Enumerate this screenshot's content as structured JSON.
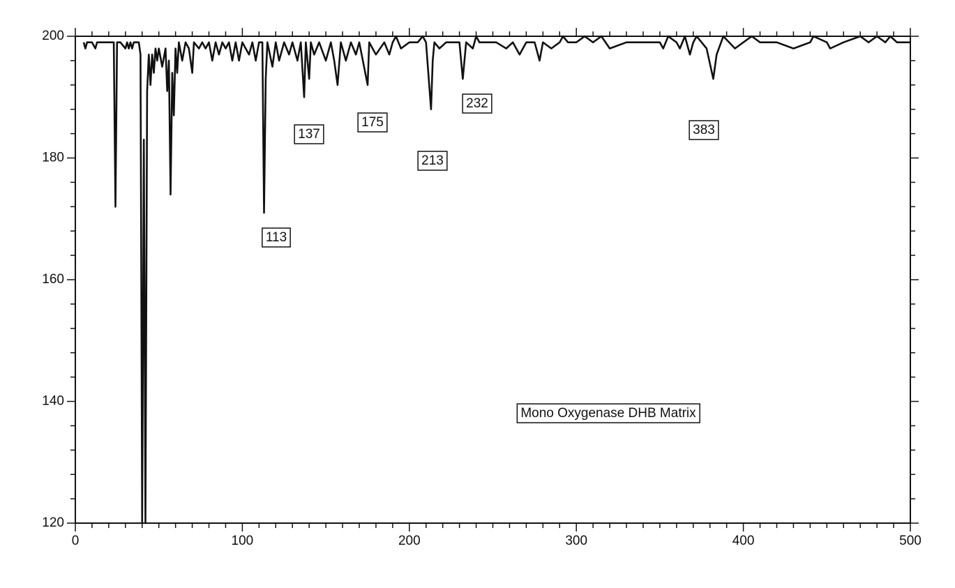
{
  "chart_data": {
    "type": "line",
    "annotations": [
      "113",
      "137",
      "175",
      "213",
      "232",
      "383",
      "Mono Oxygenase DHB Matrix"
    ],
    "x": [
      5,
      6,
      7,
      10,
      12,
      13,
      20,
      23,
      24,
      25,
      27,
      30,
      31,
      32,
      33,
      34,
      35,
      36,
      38,
      39,
      40,
      41,
      42,
      43,
      44,
      45,
      46,
      47,
      48,
      49,
      50,
      52,
      54,
      55,
      56,
      57,
      58,
      59,
      60,
      61,
      62,
      64,
      66,
      68,
      70,
      71,
      74,
      76,
      78,
      80,
      82,
      84,
      86,
      88,
      90,
      92,
      94,
      96,
      98,
      100,
      104,
      106,
      108,
      110,
      112,
      113,
      114,
      115,
      118,
      120,
      122,
      125,
      128,
      130,
      133,
      135,
      137,
      138,
      140,
      141,
      143,
      146,
      150,
      153,
      155,
      157,
      159,
      162,
      165,
      168,
      170,
      175,
      176,
      180,
      185,
      188,
      190,
      192,
      195,
      200,
      205,
      208,
      210,
      213,
      214,
      215,
      218,
      222,
      225,
      230,
      232,
      234,
      238,
      240,
      242,
      248,
      252,
      258,
      262,
      266,
      270,
      275,
      278,
      280,
      285,
      290,
      292,
      295,
      300,
      305,
      310,
      315,
      320,
      330,
      340,
      350,
      352,
      355,
      360,
      362,
      365,
      368,
      370,
      372,
      375,
      378,
      382,
      384,
      388,
      395,
      400,
      405,
      410,
      420,
      430,
      440,
      442,
      450,
      452,
      460,
      470,
      475,
      480,
      485,
      488,
      492,
      500
    ],
    "series": [
      {
        "color": "#111111",
        "values": [
          199,
          198,
          199,
          199,
          198,
          199,
          199,
          199,
          172,
          199,
          199,
          198,
          199,
          198,
          199,
          198,
          199,
          199,
          199,
          197,
          120,
          183,
          120,
          191,
          197,
          192,
          197,
          194,
          198,
          196,
          198,
          195,
          198,
          191,
          196,
          174,
          194,
          187,
          198,
          194,
          199,
          196,
          199,
          198,
          194,
          199,
          198,
          199,
          198,
          199,
          196,
          199,
          197,
          199,
          198,
          199,
          196,
          199,
          196,
          199,
          197,
          199,
          196,
          199,
          199,
          171,
          193,
          199,
          195,
          199,
          196,
          199,
          197,
          199,
          196,
          199,
          190,
          199,
          193,
          199,
          197,
          199,
          196,
          199,
          196,
          192,
          199,
          196,
          199,
          197,
          199,
          192,
          199,
          197,
          199,
          197,
          199,
          200,
          198,
          199,
          199,
          200,
          199,
          188,
          196,
          199,
          198,
          199,
          199,
          199,
          193,
          199,
          198,
          200,
          199,
          199,
          199,
          198,
          199,
          197,
          199,
          199,
          196,
          199,
          198,
          199,
          200,
          199,
          199,
          200,
          199,
          200,
          198,
          199,
          199,
          199,
          198,
          200,
          199,
          198,
          200,
          197,
          199,
          200,
          199,
          198,
          193,
          197,
          200,
          198,
          199,
          200,
          199,
          199,
          198,
          199,
          200,
          199,
          198,
          199,
          200,
          199,
          200,
          199,
          200,
          199,
          199
        ]
      }
    ],
    "xlim": [
      0,
      500
    ],
    "ylim": [
      120,
      200
    ],
    "xticks": [
      0,
      100,
      200,
      300,
      400,
      500
    ],
    "yticks": [
      120,
      140,
      160,
      180,
      200
    ],
    "xminorticks": [
      10,
      20,
      30,
      40,
      50,
      60,
      70,
      80,
      90,
      110,
      120,
      130,
      140,
      150,
      160,
      170,
      180,
      190,
      210,
      220,
      230,
      240,
      250,
      260,
      270,
      280,
      290,
      310,
      320,
      330,
      340,
      350,
      360,
      370,
      380,
      390,
      410,
      420,
      430,
      440,
      450,
      460,
      470,
      480,
      490
    ],
    "yminorticks": [
      124,
      128,
      132,
      136,
      144,
      148,
      152,
      156,
      164,
      168,
      172,
      176,
      184,
      188,
      192,
      196
    ]
  }
}
